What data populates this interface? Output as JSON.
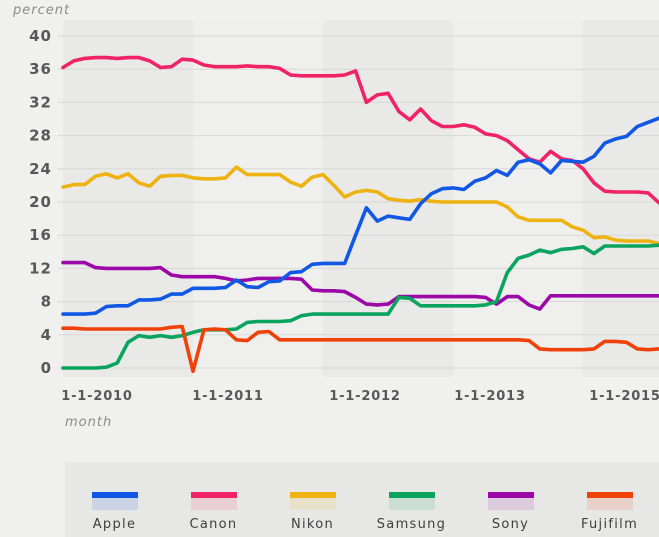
{
  "chart_data": {
    "type": "line",
    "title": "",
    "y_axis": {
      "label": "percent",
      "ticks": [
        0,
        4,
        8,
        12,
        16,
        20,
        24,
        28,
        32,
        36,
        40
      ],
      "range": [
        0,
        40
      ],
      "grid": true
    },
    "x_axis": {
      "label": "month",
      "tick_labels": [
        "1-1-2010",
        "1-1-2011",
        "1-1-2012",
        "1-1-2013",
        "1-1-2015"
      ]
    },
    "legend": {
      "position": "bottom",
      "entries": [
        "Apple",
        "Canon",
        "Nikon",
        "Samsung",
        "Sony",
        "Fujifilm"
      ]
    },
    "series": [
      {
        "name": "Apple",
        "color": "#1158E5",
        "values": [
          6.5,
          6.5,
          6.5,
          6.6,
          7.4,
          7.5,
          7.5,
          8.2,
          8.2,
          8.3,
          8.9,
          8.9,
          9.6,
          9.6,
          9.6,
          9.7,
          10.6,
          9.8,
          9.7,
          10.4,
          10.5,
          11.5,
          11.6,
          12.5,
          12.6,
          12.6,
          12.6,
          16.0,
          19.3,
          17.7,
          18.3,
          18.1,
          17.9,
          19.8,
          21.0,
          21.6,
          21.7,
          21.5,
          22.5,
          22.9,
          23.8,
          23.2,
          24.8,
          25.1,
          24.6,
          23.5,
          25.0,
          24.9,
          24.8,
          25.5,
          27.1,
          27.6,
          27.9,
          29.1,
          29.6,
          30.1
        ]
      },
      {
        "name": "Canon",
        "color": "#F02369",
        "values": [
          36.2,
          37.0,
          37.3,
          37.4,
          37.4,
          37.3,
          37.4,
          37.4,
          37.0,
          36.2,
          36.3,
          37.2,
          37.1,
          36.5,
          36.3,
          36.3,
          36.3,
          36.4,
          36.3,
          36.3,
          36.1,
          35.3,
          35.2,
          35.2,
          35.2,
          35.2,
          35.3,
          35.8,
          32.0,
          32.9,
          33.1,
          30.9,
          29.9,
          31.2,
          29.8,
          29.1,
          29.1,
          29.3,
          29.0,
          28.2,
          28.0,
          27.4,
          26.3,
          25.2,
          24.8,
          26.1,
          25.2,
          25.0,
          24.0,
          22.3,
          21.3,
          21.2,
          21.2,
          21.2,
          21.1,
          19.9
        ]
      },
      {
        "name": "Nikon",
        "color": "#EEB211",
        "values": [
          21.8,
          22.1,
          22.1,
          23.1,
          23.4,
          22.9,
          23.4,
          22.3,
          21.9,
          23.1,
          23.2,
          23.2,
          22.9,
          22.8,
          22.8,
          22.9,
          24.2,
          23.3,
          23.3,
          23.3,
          23.3,
          22.4,
          21.9,
          23.0,
          23.3,
          22.0,
          20.6,
          21.2,
          21.4,
          21.2,
          20.4,
          20.2,
          20.1,
          20.3,
          20.1,
          20.0,
          20.0,
          20.0,
          20.0,
          20.0,
          20.0,
          19.4,
          18.2,
          17.8,
          17.8,
          17.8,
          17.8,
          17.0,
          16.6,
          15.7,
          15.8,
          15.4,
          15.3,
          15.3,
          15.3,
          15.0
        ]
      },
      {
        "name": "Samsung",
        "color": "#0AA45F",
        "values": [
          0,
          0,
          0,
          0,
          0.1,
          0.6,
          3.1,
          3.9,
          3.7,
          3.9,
          3.7,
          3.9,
          4.3,
          4.6,
          4.6,
          4.6,
          4.7,
          5.5,
          5.6,
          5.6,
          5.6,
          5.7,
          6.3,
          6.5,
          6.5,
          6.5,
          6.5,
          6.5,
          6.5,
          6.5,
          6.5,
          8.5,
          8.4,
          7.5,
          7.5,
          7.5,
          7.5,
          7.5,
          7.5,
          7.6,
          8.0,
          11.5,
          13.2,
          13.6,
          14.2,
          13.9,
          14.3,
          14.4,
          14.6,
          13.8,
          14.7,
          14.7,
          14.7,
          14.7,
          14.7,
          14.8
        ]
      },
      {
        "name": "Sony",
        "color": "#9C07A8",
        "values": [
          12.7,
          12.7,
          12.7,
          12.1,
          12.0,
          12.0,
          12.0,
          12.0,
          12.0,
          12.1,
          11.2,
          11.0,
          11.0,
          11.0,
          11.0,
          10.8,
          10.5,
          10.6,
          10.8,
          10.8,
          10.8,
          10.8,
          10.7,
          9.4,
          9.3,
          9.3,
          9.2,
          8.5,
          7.7,
          7.6,
          7.7,
          8.6,
          8.6,
          8.6,
          8.6,
          8.6,
          8.6,
          8.6,
          8.6,
          8.5,
          7.7,
          8.6,
          8.6,
          7.6,
          7.1,
          8.7,
          8.7,
          8.7,
          8.7,
          8.7,
          8.7,
          8.7,
          8.7,
          8.7,
          8.7,
          8.7
        ]
      },
      {
        "name": "Fujifilm",
        "color": "#F0410A",
        "values": [
          4.8,
          4.8,
          4.7,
          4.7,
          4.7,
          4.7,
          4.7,
          4.7,
          4.7,
          4.7,
          4.9,
          5.0,
          -0.4,
          4.6,
          4.7,
          4.6,
          3.4,
          3.3,
          4.3,
          4.4,
          3.4,
          3.4,
          3.4,
          3.4,
          3.4,
          3.4,
          3.4,
          3.4,
          3.4,
          3.4,
          3.4,
          3.4,
          3.4,
          3.4,
          3.4,
          3.4,
          3.4,
          3.4,
          3.4,
          3.4,
          3.4,
          3.4,
          3.4,
          3.3,
          2.3,
          2.2,
          2.2,
          2.2,
          2.2,
          2.3,
          3.2,
          3.2,
          3.1,
          2.3,
          2.2,
          2.3
        ]
      }
    ]
  },
  "palette": {
    "page_background": "#f0f0ee",
    "plot_band_dark": "#e9e9e7",
    "plot_band_light": "#efefed",
    "gridline": "#d8d8d6",
    "legend_band": "#e7e7e5",
    "tick_text": "#58585a",
    "axis_title_text": "#8c8c8a",
    "legend_text": "#3e3f40"
  }
}
